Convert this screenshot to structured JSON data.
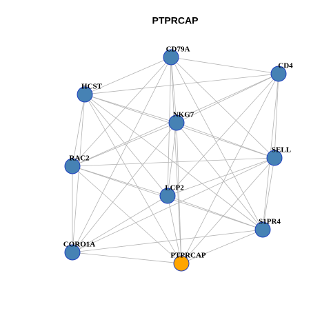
{
  "title": "PTPRCAP",
  "nodes": [
    {
      "label": "CD79A"
    },
    {
      "label": "CD4"
    },
    {
      "label": "HCST"
    },
    {
      "label": "NKG7"
    },
    {
      "label": "SELL"
    },
    {
      "label": "RAC2"
    },
    {
      "label": "LCP2"
    },
    {
      "label": "S1PR4"
    },
    {
      "label": "CORO1A"
    },
    {
      "label": "PTPRCAP"
    }
  ]
}
